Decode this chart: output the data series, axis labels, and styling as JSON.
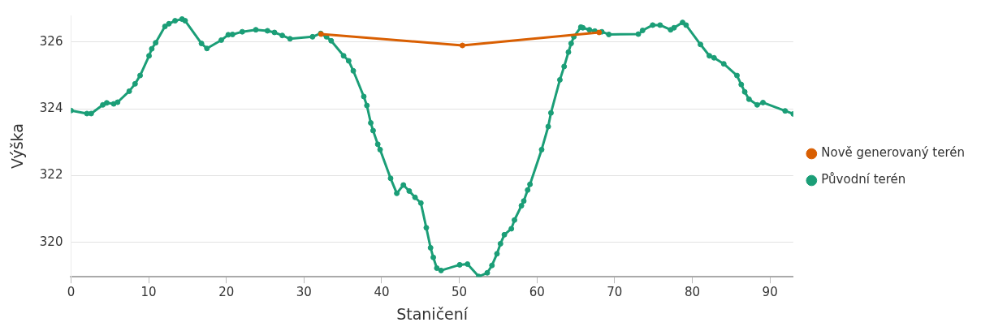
{
  "chart_data": {
    "type": "line",
    "xlabel": "Staničení",
    "ylabel": "Výška",
    "xlim": [
      0,
      93
    ],
    "xticks": [
      0,
      10,
      20,
      30,
      40,
      50,
      60,
      70,
      80,
      90
    ],
    "ylim": [
      318.97,
      326.8
    ],
    "yticks": [
      320,
      322,
      324,
      326
    ],
    "grid": "y",
    "legend": "right",
    "marker": "circle",
    "line_style": "solid",
    "series": [
      {
        "name": "Nově generovaný terén",
        "color": "#d95f02",
        "x": [
          32.2,
          50.4,
          68.0
        ],
        "values": [
          326.24,
          325.9,
          326.29
        ]
      },
      {
        "name": "Původní terén",
        "color": "#1b9e77",
        "x": [
          0,
          2.05,
          2.6,
          4.1,
          4.6,
          5.5,
          6.0,
          7.5,
          8.25,
          8.9,
          10.05,
          10.4,
          10.9,
          12.1,
          12.6,
          13.4,
          14.3,
          14.7,
          16.8,
          17.5,
          19.35,
          20.25,
          20.8,
          22.05,
          23.8,
          25.3,
          26.2,
          27.2,
          28.2,
          31.1,
          32.15,
          32.9,
          33.5,
          35.1,
          35.75,
          36.35,
          37.7,
          38.1,
          38.6,
          38.9,
          39.5,
          39.8,
          41.15,
          41.95,
          42.8,
          43.55,
          44.3,
          45.05,
          45.75,
          46.3,
          46.65,
          47.1,
          47.65,
          50.05,
          51.05,
          52.5,
          53.6,
          54.2,
          54.85,
          55.3,
          55.8,
          56.7,
          57.1,
          58.0,
          58.3,
          58.8,
          59.1,
          60.6,
          61.45,
          61.8,
          62.95,
          63.5,
          64.05,
          64.4,
          64.75,
          65.65,
          65.9,
          66.75,
          67.45,
          68.35,
          69.25,
          73.05,
          73.6,
          74.9,
          75.85,
          77.2,
          77.65,
          78.75,
          79.2,
          81.05,
          82.2,
          82.8,
          84.05,
          85.75,
          86.3,
          86.75,
          87.3,
          88.35,
          89.1,
          91.95,
          93
        ],
        "values": [
          323.95,
          323.86,
          323.86,
          324.12,
          324.18,
          324.15,
          324.2,
          324.53,
          324.75,
          325.0,
          325.59,
          325.8,
          325.98,
          326.47,
          326.55,
          326.64,
          326.69,
          326.64,
          325.96,
          325.81,
          326.06,
          326.22,
          326.23,
          326.31,
          326.37,
          326.34,
          326.29,
          326.2,
          326.1,
          326.16,
          326.26,
          326.16,
          326.04,
          325.59,
          325.44,
          325.14,
          324.37,
          324.1,
          323.58,
          323.35,
          322.94,
          322.78,
          321.92,
          321.47,
          321.72,
          321.54,
          321.35,
          321.18,
          320.44,
          319.84,
          319.55,
          319.23,
          319.16,
          319.33,
          319.35,
          318.98,
          319.09,
          319.31,
          319.66,
          319.96,
          320.23,
          320.41,
          320.67,
          321.1,
          321.24,
          321.57,
          321.74,
          322.78,
          323.47,
          323.88,
          324.87,
          325.27,
          325.7,
          325.96,
          326.16,
          326.45,
          326.43,
          326.37,
          326.33,
          326.31,
          326.23,
          326.24,
          326.35,
          326.51,
          326.51,
          326.37,
          326.43,
          326.59,
          326.51,
          325.93,
          325.59,
          325.53,
          325.35,
          325.0,
          324.73,
          324.51,
          324.29,
          324.12,
          324.19,
          323.94,
          323.85
        ]
      }
    ]
  }
}
